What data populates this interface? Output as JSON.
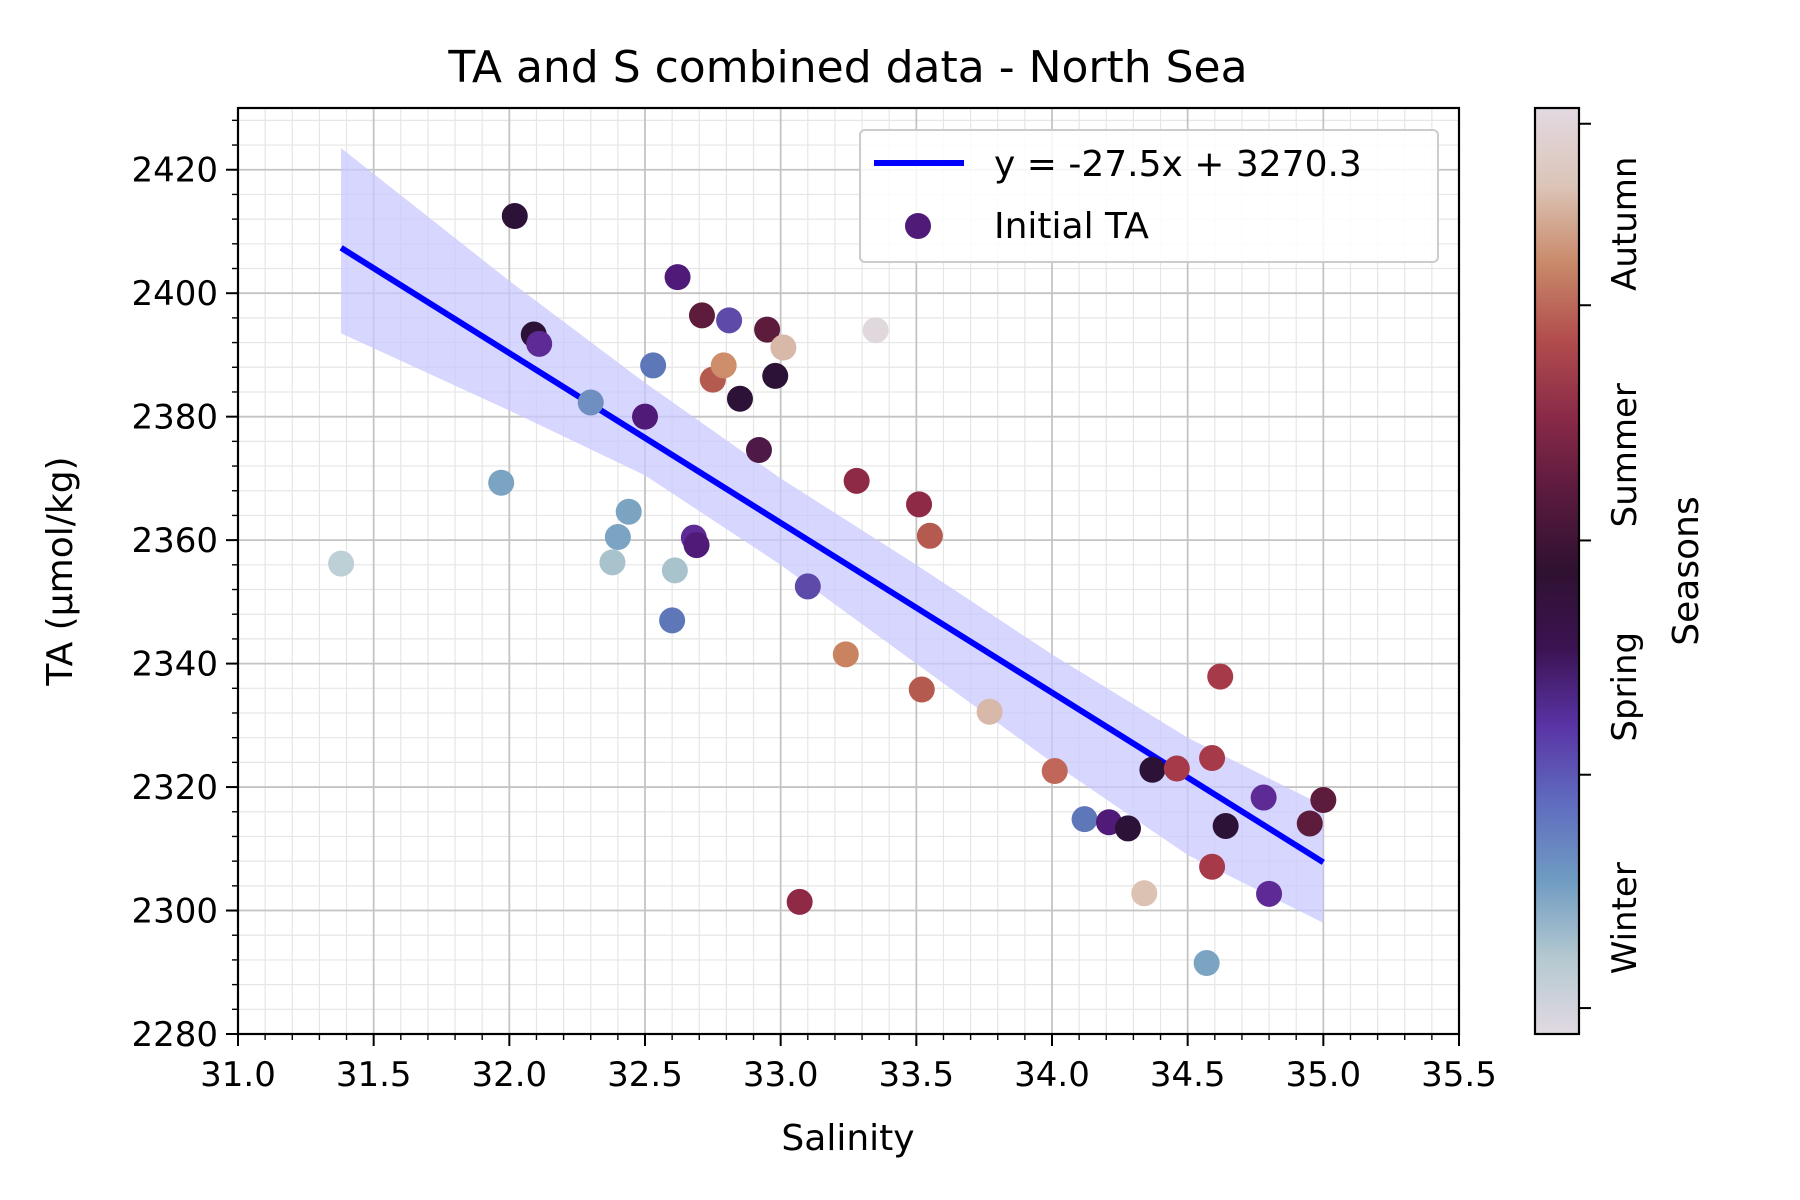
{
  "chart_data": {
    "type": "scatter",
    "title": "TA and S combined data - North Sea",
    "xlabel": "Salinity",
    "ylabel": "TA (µmol/kg)",
    "xlim": [
      31.0,
      35.5
    ],
    "ylim": [
      2280,
      2430
    ],
    "xticks": [
      31.0,
      31.5,
      32.0,
      32.5,
      33.0,
      33.5,
      34.0,
      34.5,
      35.0,
      35.5
    ],
    "xtick_labels": [
      "31.0",
      "31.5",
      "32.0",
      "32.5",
      "33.0",
      "33.5",
      "34.0",
      "34.5",
      "35.0",
      "35.5"
    ],
    "yticks": [
      2280,
      2300,
      2320,
      2340,
      2360,
      2380,
      2400,
      2420
    ],
    "ytick_labels": [
      "2280",
      "2300",
      "2320",
      "2340",
      "2360",
      "2380",
      "2400",
      "2420"
    ],
    "grid": true,
    "legend_position": "top-right",
    "regression": {
      "label": "y = -27.5x + 3270.3",
      "slope": -27.5,
      "intercept": 3270.3,
      "x_range": [
        31.38,
        35.0
      ],
      "color": "#0000ff",
      "band_color": "#c8c8ff",
      "band": [
        {
          "x": 31.38,
          "lower": 2393.5,
          "upper": 2423.5
        },
        {
          "x": 32.0,
          "lower": 2381.0,
          "upper": 2402.0
        },
        {
          "x": 32.5,
          "lower": 2370.5,
          "upper": 2385.5
        },
        {
          "x": 33.0,
          "lower": 2356.0,
          "upper": 2370.0
        },
        {
          "x": 33.5,
          "lower": 2340.0,
          "upper": 2356.0
        },
        {
          "x": 34.0,
          "lower": 2324.0,
          "upper": 2341.5
        },
        {
          "x": 34.5,
          "lower": 2309.0,
          "upper": 2328.0
        },
        {
          "x": 35.0,
          "lower": 2298.0,
          "upper": 2317.0
        }
      ]
    },
    "series": [
      {
        "name": "Initial TA",
        "legend_color": "#4f1a78",
        "points": [
          {
            "x": 31.38,
            "y": 2356.2,
            "color": "#bdd0d6"
          },
          {
            "x": 31.97,
            "y": 2369.3,
            "color": "#7ba3c2"
          },
          {
            "x": 32.02,
            "y": 2412.5,
            "color": "#2c1236"
          },
          {
            "x": 32.09,
            "y": 2393.3,
            "color": "#2c1236"
          },
          {
            "x": 32.11,
            "y": 2391.8,
            "color": "#5e2a96"
          },
          {
            "x": 32.3,
            "y": 2382.3,
            "color": "#6f8fc0"
          },
          {
            "x": 32.38,
            "y": 2356.4,
            "color": "#a9c3cc"
          },
          {
            "x": 32.4,
            "y": 2360.5,
            "color": "#7ba3c2"
          },
          {
            "x": 32.44,
            "y": 2364.6,
            "color": "#7ba3c2"
          },
          {
            "x": 32.5,
            "y": 2380.0,
            "color": "#4f1a78"
          },
          {
            "x": 32.53,
            "y": 2388.3,
            "color": "#5e77b8"
          },
          {
            "x": 32.6,
            "y": 2347.0,
            "color": "#5e77b8"
          },
          {
            "x": 32.61,
            "y": 2355.1,
            "color": "#a9c3cc"
          },
          {
            "x": 32.62,
            "y": 2402.6,
            "color": "#4f1a78"
          },
          {
            "x": 32.68,
            "y": 2360.4,
            "color": "#5e2a96"
          },
          {
            "x": 32.69,
            "y": 2359.2,
            "color": "#4f1a78"
          },
          {
            "x": 32.71,
            "y": 2396.4,
            "color": "#5e1c3c"
          },
          {
            "x": 32.75,
            "y": 2386.0,
            "color": "#b55a4f"
          },
          {
            "x": 32.79,
            "y": 2388.3,
            "color": "#cf8e6b"
          },
          {
            "x": 32.81,
            "y": 2395.6,
            "color": "#5e4aa8"
          },
          {
            "x": 32.85,
            "y": 2382.9,
            "color": "#2c1236"
          },
          {
            "x": 32.92,
            "y": 2374.6,
            "color": "#4d1a48"
          },
          {
            "x": 32.95,
            "y": 2394.1,
            "color": "#5e1c3c"
          },
          {
            "x": 32.98,
            "y": 2386.6,
            "color": "#2c1236"
          },
          {
            "x": 33.01,
            "y": 2391.2,
            "color": "#d8b8a8"
          },
          {
            "x": 33.07,
            "y": 2301.4,
            "color": "#8e2a46"
          },
          {
            "x": 33.1,
            "y": 2352.5,
            "color": "#5e4aa8"
          },
          {
            "x": 33.24,
            "y": 2341.5,
            "color": "#c98360"
          },
          {
            "x": 33.28,
            "y": 2369.6,
            "color": "#8e2a46"
          },
          {
            "x": 33.35,
            "y": 2394.0,
            "color": "#e0d8dc"
          },
          {
            "x": 33.51,
            "y": 2365.8,
            "color": "#8e2a46"
          },
          {
            "x": 33.52,
            "y": 2335.8,
            "color": "#b55a4f"
          },
          {
            "x": 33.55,
            "y": 2360.7,
            "color": "#b55a4f"
          },
          {
            "x": 33.77,
            "y": 2332.2,
            "color": "#d8b8a8"
          },
          {
            "x": 34.01,
            "y": 2322.6,
            "color": "#c0675a"
          },
          {
            "x": 34.12,
            "y": 2314.8,
            "color": "#5e77b8"
          },
          {
            "x": 34.21,
            "y": 2314.3,
            "color": "#4f1a78"
          },
          {
            "x": 34.28,
            "y": 2313.3,
            "color": "#2c1236"
          },
          {
            "x": 34.34,
            "y": 2302.8,
            "color": "#dcc2b2"
          },
          {
            "x": 34.37,
            "y": 2322.8,
            "color": "#2c1236"
          },
          {
            "x": 34.46,
            "y": 2323.0,
            "color": "#a63a48"
          },
          {
            "x": 34.57,
            "y": 2291.5,
            "color": "#7ba3c2"
          },
          {
            "x": 34.59,
            "y": 2307.1,
            "color": "#a63a48"
          },
          {
            "x": 34.59,
            "y": 2324.7,
            "color": "#a63a48"
          },
          {
            "x": 34.62,
            "y": 2337.9,
            "color": "#a63a48"
          },
          {
            "x": 34.64,
            "y": 2313.7,
            "color": "#2c1236"
          },
          {
            "x": 34.78,
            "y": 2318.3,
            "color": "#5e2a96"
          },
          {
            "x": 34.8,
            "y": 2302.7,
            "color": "#5e2a96"
          },
          {
            "x": 34.95,
            "y": 2314.1,
            "color": "#5e1c3c"
          },
          {
            "x": 35.0,
            "y": 2317.9,
            "color": "#5e1c3c"
          }
        ]
      }
    ],
    "colorbar": {
      "label": "Seasons",
      "tick_labels": [
        "Winter",
        "Spring",
        "Summer",
        "Autumn"
      ],
      "gradient": [
        "#e2d9e2",
        "#b3c8d0",
        "#6f9bc2",
        "#5f6cbf",
        "#5a33a5",
        "#3b1352",
        "#2f1131",
        "#5a1a3e",
        "#8a2a48",
        "#b24d4d",
        "#c98a6a",
        "#dcc5b8",
        "#e2d9e2"
      ]
    }
  }
}
